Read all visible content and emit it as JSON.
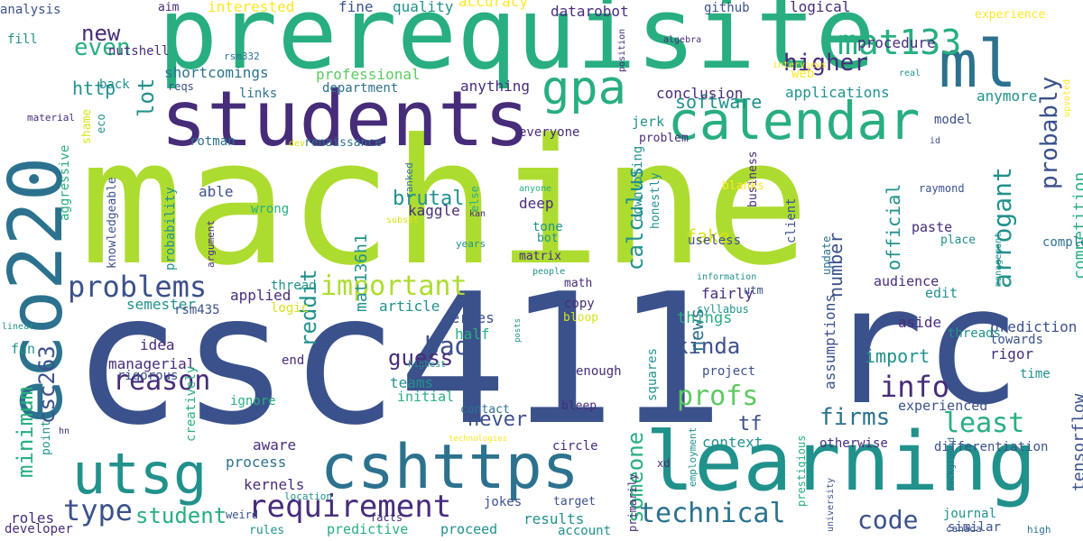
{
  "palette": {
    "dark-purple": "#472c7a",
    "indigo": "#3b518b",
    "blue": "#2c728e",
    "teal": "#21918c",
    "green": "#28ae80",
    "light-green": "#5ec962",
    "lime": "#addc30",
    "bright-lime": "#8fd744",
    "yellow": "#d8e219",
    "bright-yellow": "#fde725"
  },
  "words": [
    {
      "text": "machine",
      "color": "lime"
    },
    {
      "text": "csc411",
      "color": "indigo"
    },
    {
      "text": "prerequisite",
      "color": "green"
    },
    {
      "text": "learning",
      "color": "teal"
    },
    {
      "text": "rc",
      "color": "indigo"
    },
    {
      "text": "eco220",
      "color": "blue"
    },
    {
      "text": "students",
      "color": "dark-purple"
    },
    {
      "text": "ml",
      "color": "blue"
    },
    {
      "text": "calendar",
      "color": "green"
    },
    {
      "text": "cshttps",
      "color": "blue"
    },
    {
      "text": "utsg",
      "color": "teal"
    },
    {
      "text": "gpa",
      "color": "green"
    },
    {
      "text": "mat133",
      "color": "green"
    },
    {
      "text": "requirement",
      "color": "dark-purple"
    },
    {
      "text": "problems",
      "color": "indigo"
    },
    {
      "text": "important",
      "color": "lime"
    },
    {
      "text": "reason",
      "color": "dark-purple"
    },
    {
      "text": "technical",
      "color": "blue"
    },
    {
      "text": "info",
      "color": "dark-purple"
    },
    {
      "text": "type",
      "color": "indigo"
    },
    {
      "text": "code",
      "color": "indigo"
    },
    {
      "text": "profs",
      "color": "light-green"
    },
    {
      "text": "firms",
      "color": "blue"
    },
    {
      "text": "least",
      "color": "green"
    },
    {
      "text": "arrogant",
      "color": "teal"
    },
    {
      "text": "probably",
      "color": "indigo"
    },
    {
      "text": "student",
      "color": "green"
    },
    {
      "text": "kinda",
      "color": "indigo"
    },
    {
      "text": "higher",
      "color": "dark-purple"
    },
    {
      "text": "software",
      "color": "teal"
    },
    {
      "text": "reddit",
      "color": "teal"
    },
    {
      "text": "csc263",
      "color": "indigo"
    },
    {
      "text": "minimum",
      "color": "green"
    },
    {
      "text": "calculus",
      "color": "teal"
    },
    {
      "text": "someone",
      "color": "green"
    },
    {
      "text": "bad",
      "color": "indigo"
    },
    {
      "text": "guess",
      "color": "dark-purple"
    },
    {
      "text": "never",
      "color": "indigo"
    },
    {
      "text": "news",
      "color": "blue"
    },
    {
      "text": "brutal",
      "color": "teal"
    },
    {
      "text": "even",
      "color": "green"
    },
    {
      "text": "lot",
      "color": "teal"
    },
    {
      "text": "new",
      "color": "dark-purple"
    },
    {
      "text": "http",
      "color": "teal"
    },
    {
      "text": "fake",
      "color": "yellow"
    },
    {
      "text": "number",
      "color": "indigo"
    },
    {
      "text": "official",
      "color": "teal"
    },
    {
      "text": "competition",
      "color": "green"
    },
    {
      "text": "tensorflow",
      "color": "indigo"
    },
    {
      "text": "mat136h1",
      "color": "teal"
    },
    {
      "text": "import",
      "color": "teal"
    },
    {
      "text": "tf",
      "color": "indigo"
    },
    {
      "text": "interested",
      "color": "bright-yellow"
    },
    {
      "text": "professional",
      "color": "light-green"
    },
    {
      "text": "shortcomings",
      "color": "blue"
    },
    {
      "text": "kaggle",
      "color": "dark-purple"
    },
    {
      "text": "applied",
      "color": "dark-purple"
    },
    {
      "text": "fine",
      "color": "indigo"
    },
    {
      "text": "quality",
      "color": "teal"
    },
    {
      "text": "accuracy",
      "color": "bright-yellow"
    },
    {
      "text": "datarobot",
      "color": "dark-purple"
    },
    {
      "text": "github",
      "color": "indigo"
    },
    {
      "text": "logical",
      "color": "dark-purple"
    },
    {
      "text": "web",
      "color": "bright-yellow"
    },
    {
      "text": "procedure",
      "color": "dark-purple"
    },
    {
      "text": "conclusion",
      "color": "dark-purple"
    },
    {
      "text": "applications",
      "color": "teal"
    },
    {
      "text": "anymore",
      "color": "teal"
    },
    {
      "text": "anything",
      "color": "dark-purple"
    },
    {
      "text": "department",
      "color": "blue"
    },
    {
      "text": "links",
      "color": "blue"
    },
    {
      "text": "reqs",
      "color": "indigo"
    },
    {
      "text": "back",
      "color": "teal"
    },
    {
      "text": "analysis",
      "color": "indigo"
    },
    {
      "text": "aim",
      "color": "dark-purple"
    },
    {
      "text": "nutshell",
      "color": "dark-purple"
    },
    {
      "text": "fill",
      "color": "teal"
    },
    {
      "text": "material",
      "color": "dark-purple"
    },
    {
      "text": "rsm332",
      "color": "blue"
    },
    {
      "text": "jerk",
      "color": "teal"
    },
    {
      "text": "model",
      "color": "indigo"
    },
    {
      "text": "everyone",
      "color": "dark-purple"
    },
    {
      "text": "problem",
      "color": "dark-purple"
    },
    {
      "text": "rotman",
      "color": "blue"
    },
    {
      "text": "renaissance",
      "color": "blue"
    },
    {
      "text": "able",
      "color": "indigo"
    },
    {
      "text": "wrong",
      "color": "green"
    },
    {
      "text": "deep",
      "color": "dark-purple"
    },
    {
      "text": "tone",
      "color": "teal"
    },
    {
      "text": "bot",
      "color": "teal"
    },
    {
      "text": "useless",
      "color": "indigo"
    },
    {
      "text": "matrix",
      "color": "dark-purple"
    },
    {
      "text": "paste",
      "color": "dark-purple"
    },
    {
      "text": "place",
      "color": "teal"
    },
    {
      "text": "raymond",
      "color": "indigo"
    },
    {
      "text": "client",
      "color": "indigo"
    },
    {
      "text": "business",
      "color": "dark-purple"
    },
    {
      "text": "audience",
      "color": "dark-purple"
    },
    {
      "text": "edit",
      "color": "teal"
    },
    {
      "text": "aside",
      "color": "dark-purple"
    },
    {
      "text": "fairly",
      "color": "dark-purple"
    },
    {
      "text": "copy",
      "color": "dark-purple"
    },
    {
      "text": "math",
      "color": "dark-purple"
    },
    {
      "text": "semester",
      "color": "teal"
    },
    {
      "text": "rsm435",
      "color": "indigo"
    },
    {
      "text": "article",
      "color": "teal"
    },
    {
      "text": "series",
      "color": "indigo"
    },
    {
      "text": "things",
      "color": "green"
    },
    {
      "text": "assumptions",
      "color": "indigo"
    },
    {
      "text": "prediction",
      "color": "indigo"
    },
    {
      "text": "threads",
      "color": "teal"
    },
    {
      "text": "towards",
      "color": "indigo"
    },
    {
      "text": "rigor",
      "color": "dark-purple"
    },
    {
      "text": "time",
      "color": "teal"
    },
    {
      "text": "idea",
      "color": "dark-purple"
    },
    {
      "text": "managerial",
      "color": "dark-purple"
    },
    {
      "text": "rigorous",
      "color": "indigo"
    },
    {
      "text": "ignore",
      "color": "green"
    },
    {
      "text": "end",
      "color": "dark-purple"
    },
    {
      "text": "teams",
      "color": "teal"
    },
    {
      "text": "initial",
      "color": "green"
    },
    {
      "text": "half",
      "color": "green"
    },
    {
      "text": "enough",
      "color": "dark-purple"
    },
    {
      "text": "project",
      "color": "indigo"
    },
    {
      "text": "contact",
      "color": "blue"
    },
    {
      "text": "bleep",
      "color": "dark-purple"
    },
    {
      "text": "squares",
      "color": "teal"
    },
    {
      "text": "context",
      "color": "teal"
    },
    {
      "text": "otherwise",
      "color": "dark-purple"
    },
    {
      "text": "experienced",
      "color": "indigo"
    },
    {
      "text": "differentiation",
      "color": "indigo"
    },
    {
      "text": "aware",
      "color": "dark-purple"
    },
    {
      "text": "process",
      "color": "blue"
    },
    {
      "text": "kernels",
      "color": "dark-purple"
    },
    {
      "text": "circle",
      "color": "dark-purple"
    },
    {
      "text": "results",
      "color": "teal"
    },
    {
      "text": "roles",
      "color": "dark-purple"
    },
    {
      "text": "developer",
      "color": "dark-purple"
    },
    {
      "text": "rules",
      "color": "teal"
    },
    {
      "text": "predictive",
      "color": "green"
    },
    {
      "text": "proceed",
      "color": "teal"
    },
    {
      "text": "account",
      "color": "teal"
    },
    {
      "text": "journal",
      "color": "teal"
    },
    {
      "text": "similar",
      "color": "indigo"
    },
    {
      "text": "high",
      "color": "blue"
    },
    {
      "text": "jokes",
      "color": "indigo"
    },
    {
      "text": "target",
      "color": "indigo"
    },
    {
      "text": "fun",
      "color": "teal"
    },
    {
      "text": "point",
      "color": "teal"
    },
    {
      "text": "weird",
      "color": "indigo"
    },
    {
      "text": "location",
      "color": "teal"
    },
    {
      "text": "facts",
      "color": "dark-purple"
    },
    {
      "text": "technologies",
      "color": "bright-yellow"
    },
    {
      "text": "logic",
      "color": "yellow"
    },
    {
      "text": "bloop",
      "color": "yellow"
    },
    {
      "text": "highest",
      "color": "teal"
    },
    {
      "text": "posts",
      "color": "teal"
    },
    {
      "text": "linear",
      "color": "teal"
    },
    {
      "text": "hn",
      "color": "dark-purple"
    },
    {
      "text": "xd",
      "color": "dark-purple"
    },
    {
      "text": "canada",
      "color": "indigo"
    },
    {
      "text": "thread",
      "color": "teal"
    },
    {
      "text": "syllabus",
      "color": "teal"
    },
    {
      "text": "utm",
      "color": "indigo"
    },
    {
      "text": "information",
      "color": "teal"
    },
    {
      "text": "people",
      "color": "teal"
    },
    {
      "text": "years",
      "color": "teal"
    },
    {
      "text": "kan",
      "color": "dark-purple"
    },
    {
      "text": "anyone",
      "color": "green"
    },
    {
      "text": "subset",
      "color": "yellow"
    },
    {
      "text": "ranked",
      "color": "blue"
    },
    {
      "text": "dev",
      "color": "yellow"
    },
    {
      "text": "eco",
      "color": "teal"
    },
    {
      "text": "shame",
      "color": "yellow"
    },
    {
      "text": "aggressive",
      "color": "green"
    },
    {
      "text": "knowledgeable",
      "color": "indigo"
    },
    {
      "text": "probability",
      "color": "teal"
    },
    {
      "text": "argument",
      "color": "dark-purple"
    },
    {
      "text": "creatively",
      "color": "green"
    },
    {
      "text": "else",
      "color": "green"
    },
    {
      "text": "downvoting",
      "color": "teal"
    },
    {
      "text": "honestly",
      "color": "teal"
    },
    {
      "text": "primarily",
      "color": "dark-purple"
    },
    {
      "text": "employment",
      "color": "teal"
    },
    {
      "text": "prestigious",
      "color": "green"
    },
    {
      "text": "university",
      "color": "indigo"
    },
    {
      "text": "background",
      "color": "blue"
    },
    {
      "text": "update",
      "color": "blue"
    },
    {
      "text": "completely",
      "color": "blue"
    },
    {
      "text": "id",
      "color": "indigo"
    },
    {
      "text": "interviews",
      "color": "bright-yellow"
    },
    {
      "text": "position",
      "color": "dark-purple"
    },
    {
      "text": "algebra",
      "color": "dark-purple"
    },
    {
      "text": "real",
      "color": "teal"
    },
    {
      "text": "upvoted",
      "color": "bright-yellow"
    },
    {
      "text": "management",
      "color": "teal"
    },
    {
      "text": "experience",
      "color": "bright-yellow"
    },
    {
      "text": "blanks",
      "color": "bright-yellow"
    },
    {
      "text": "pre",
      "color": "dark-purple"
    }
  ]
}
